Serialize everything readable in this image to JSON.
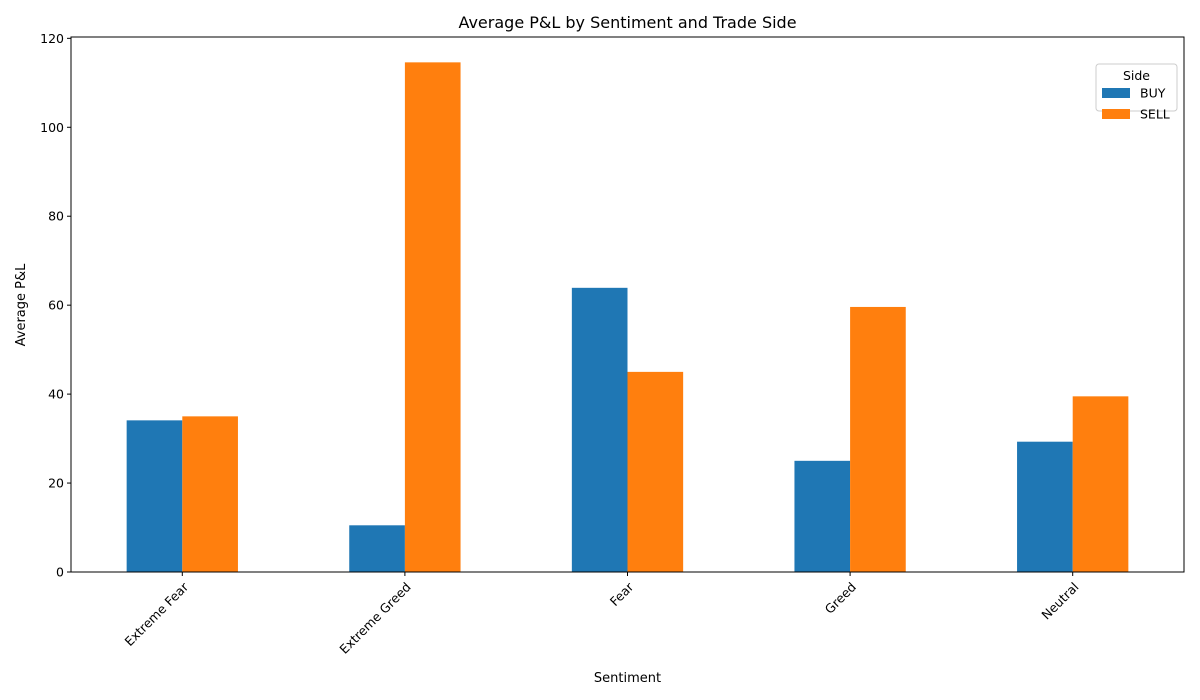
{
  "chart_data": {
    "type": "bar",
    "title": "Average P&L by Sentiment and Trade Side",
    "xlabel": "Sentiment",
    "ylabel": "Average P&L",
    "categories": [
      "Extreme Fear",
      "Extreme Greed",
      "Fear",
      "Greed",
      "Neutral"
    ],
    "series": [
      {
        "name": "BUY",
        "color": "#1f77b4",
        "values": [
          34.1,
          10.5,
          63.9,
          25.0,
          29.3
        ]
      },
      {
        "name": "SELL",
        "color": "#ff7f0e",
        "values": [
          35.0,
          114.6,
          45.0,
          59.6,
          39.5
        ]
      }
    ],
    "ylim": [
      0,
      120.3
    ],
    "yticks": [
      0,
      20,
      40,
      60,
      80,
      100,
      120
    ],
    "xtick_rotation": 45,
    "grid": false,
    "legend": {
      "title": "Side",
      "position": "top-right"
    }
  }
}
